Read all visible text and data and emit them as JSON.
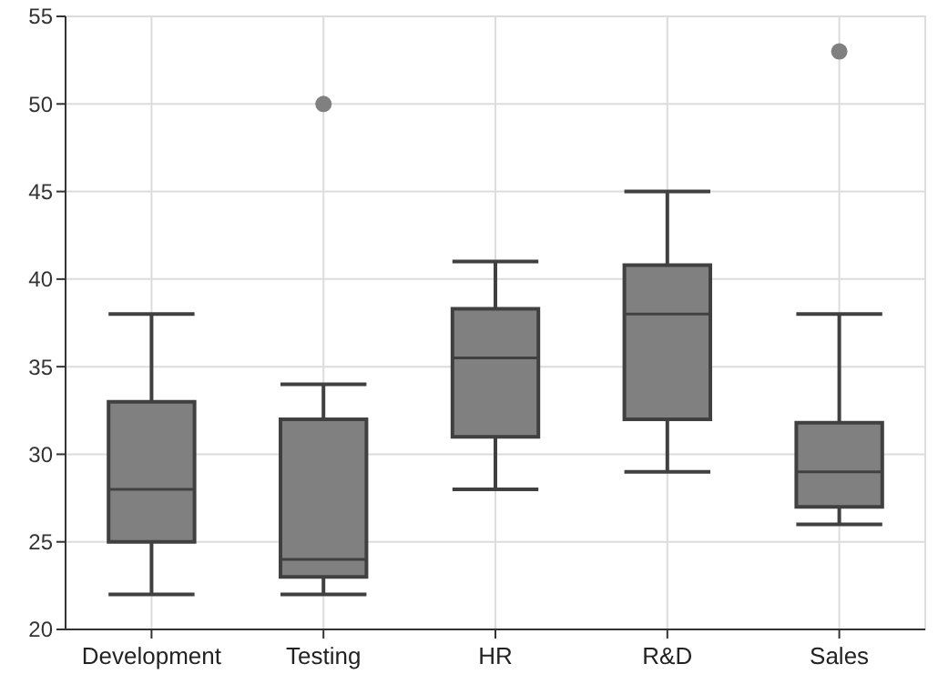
{
  "chart_data": {
    "type": "box",
    "categories": [
      "Development",
      "Testing",
      "HR",
      "R&D",
      "Sales"
    ],
    "boxes": [
      {
        "low": 22,
        "q1": 25,
        "median": 28,
        "q3": 33,
        "high": 38
      },
      {
        "low": 22,
        "q1": 23,
        "median": 24,
        "q3": 32,
        "high": 34,
        "outliers": [
          50
        ]
      },
      {
        "low": 28,
        "q1": 31,
        "median": 35.5,
        "q3": 38.3,
        "high": 41
      },
      {
        "low": 29,
        "q1": 32,
        "median": 38,
        "q3": 40.8,
        "high": 45
      },
      {
        "low": 26,
        "q1": 27,
        "median": 29,
        "q3": 31.8,
        "high": 38,
        "outliers": [
          53
        ]
      }
    ],
    "color": "#808080",
    "ylim": [
      20,
      55
    ],
    "yticks": [
      20,
      25,
      30,
      35,
      40,
      45,
      50,
      55
    ],
    "grid": true
  }
}
